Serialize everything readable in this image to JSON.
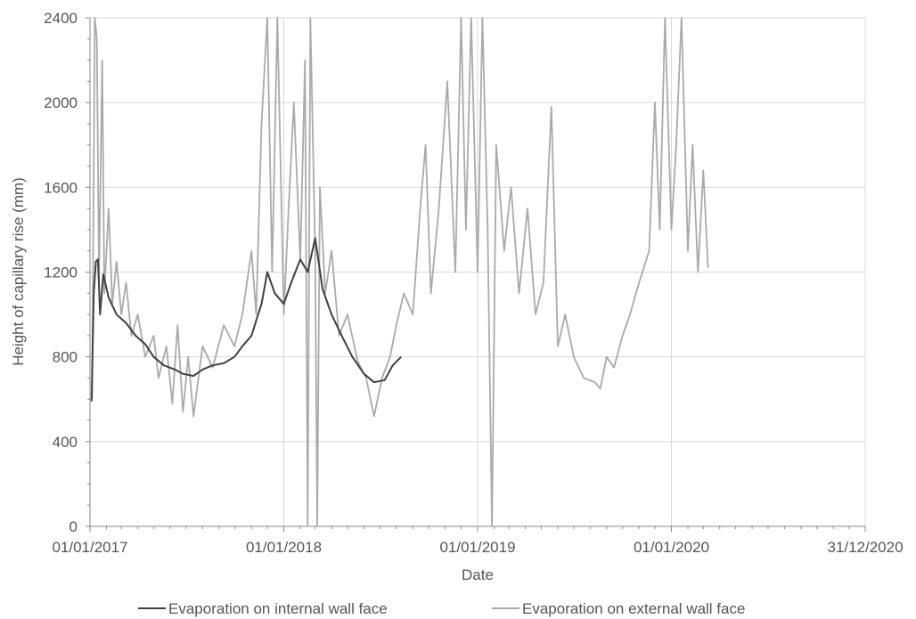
{
  "chart_data": {
    "type": "line",
    "title": "",
    "xlabel": "Date",
    "ylabel": "Height of capillary rise (mm)",
    "xlim": [
      "2017-01-01",
      "2020-12-31"
    ],
    "ylim": [
      0,
      2400
    ],
    "x_tick_labels": [
      "01/01/2017",
      "01/01/2018",
      "01/01/2019",
      "01/01/2020",
      "31/12/2020"
    ],
    "y_tick_labels": [
      "0",
      "400",
      "800",
      "1200",
      "1600",
      "2000",
      "2400"
    ],
    "y_ticks": [
      0,
      400,
      800,
      1200,
      1600,
      2000,
      2400
    ],
    "grid": true,
    "legend_position": "bottom",
    "series": [
      {
        "name": "Evaporation on internal wall face",
        "color": "#404040",
        "points": [
          [
            "2017-01-04",
            590
          ],
          [
            "2017-01-08",
            1100
          ],
          [
            "2017-01-12",
            1250
          ],
          [
            "2017-01-16",
            1260
          ],
          [
            "2017-01-20",
            1000
          ],
          [
            "2017-01-26",
            1190
          ],
          [
            "2017-02-05",
            1080
          ],
          [
            "2017-02-20",
            1000
          ],
          [
            "2017-03-10",
            960
          ],
          [
            "2017-03-28",
            900
          ],
          [
            "2017-04-15",
            860
          ],
          [
            "2017-05-01",
            800
          ],
          [
            "2017-05-20",
            760
          ],
          [
            "2017-06-10",
            740
          ],
          [
            "2017-06-25",
            720
          ],
          [
            "2017-07-15",
            710
          ],
          [
            "2017-08-01",
            740
          ],
          [
            "2017-08-20",
            760
          ],
          [
            "2017-09-10",
            770
          ],
          [
            "2017-09-30",
            800
          ],
          [
            "2017-10-15",
            850
          ],
          [
            "2017-11-01",
            900
          ],
          [
            "2017-11-20",
            1050
          ],
          [
            "2017-12-01",
            1200
          ],
          [
            "2017-12-15",
            1100
          ],
          [
            "2018-01-01",
            1050
          ],
          [
            "2018-01-15",
            1150
          ],
          [
            "2018-02-01",
            1260
          ],
          [
            "2018-02-15",
            1200
          ],
          [
            "2018-03-01",
            1360
          ],
          [
            "2018-03-15",
            1120
          ],
          [
            "2018-04-01",
            1000
          ],
          [
            "2018-04-20",
            900
          ],
          [
            "2018-05-10",
            800
          ],
          [
            "2018-06-01",
            720
          ],
          [
            "2018-06-20",
            680
          ],
          [
            "2018-07-10",
            690
          ],
          [
            "2018-07-25",
            760
          ],
          [
            "2018-08-10",
            800
          ]
        ]
      },
      {
        "name": "Evaporation on external wall face",
        "color": "#aaaaaa",
        "points": [
          [
            "2017-01-05",
            600
          ],
          [
            "2017-01-10",
            2400
          ],
          [
            "2017-01-14",
            2300
          ],
          [
            "2017-01-18",
            1150
          ],
          [
            "2017-01-24",
            2200
          ],
          [
            "2017-01-28",
            1100
          ],
          [
            "2017-02-05",
            1500
          ],
          [
            "2017-02-12",
            1050
          ],
          [
            "2017-02-20",
            1250
          ],
          [
            "2017-03-01",
            1000
          ],
          [
            "2017-03-10",
            1150
          ],
          [
            "2017-03-20",
            900
          ],
          [
            "2017-04-01",
            1000
          ],
          [
            "2017-04-15",
            800
          ],
          [
            "2017-05-01",
            900
          ],
          [
            "2017-05-10",
            700
          ],
          [
            "2017-05-25",
            850
          ],
          [
            "2017-06-05",
            580
          ],
          [
            "2017-06-15",
            950
          ],
          [
            "2017-06-25",
            540
          ],
          [
            "2017-07-05",
            800
          ],
          [
            "2017-07-15",
            520
          ],
          [
            "2017-08-01",
            850
          ],
          [
            "2017-08-20",
            750
          ],
          [
            "2017-09-10",
            950
          ],
          [
            "2017-09-30",
            850
          ],
          [
            "2017-10-15",
            1000
          ],
          [
            "2017-11-01",
            1300
          ],
          [
            "2017-11-10",
            1000
          ],
          [
            "2017-11-20",
            1900
          ],
          [
            "2017-12-01",
            2400
          ],
          [
            "2017-12-10",
            1200
          ],
          [
            "2017-12-20",
            2400
          ],
          [
            "2018-01-01",
            1000
          ],
          [
            "2018-01-10",
            1500
          ],
          [
            "2018-01-20",
            2000
          ],
          [
            "2018-02-01",
            1250
          ],
          [
            "2018-02-10",
            2200
          ],
          [
            "2018-02-15",
            0
          ],
          [
            "2018-02-20",
            2400
          ],
          [
            "2018-03-01",
            1300
          ],
          [
            "2018-03-05",
            0
          ],
          [
            "2018-03-10",
            1600
          ],
          [
            "2018-03-20",
            1100
          ],
          [
            "2018-04-01",
            1300
          ],
          [
            "2018-04-15",
            900
          ],
          [
            "2018-05-01",
            1000
          ],
          [
            "2018-05-20",
            780
          ],
          [
            "2018-06-05",
            700
          ],
          [
            "2018-06-20",
            520
          ],
          [
            "2018-07-05",
            700
          ],
          [
            "2018-07-20",
            800
          ],
          [
            "2018-08-01",
            950
          ],
          [
            "2018-08-15",
            1100
          ],
          [
            "2018-09-01",
            1000
          ],
          [
            "2018-09-15",
            1500
          ],
          [
            "2018-09-25",
            1800
          ],
          [
            "2018-10-05",
            1100
          ],
          [
            "2018-10-20",
            1500
          ],
          [
            "2018-11-05",
            2100
          ],
          [
            "2018-11-20",
            1200
          ],
          [
            "2018-12-01",
            2400
          ],
          [
            "2018-12-10",
            1400
          ],
          [
            "2018-12-20",
            2400
          ],
          [
            "2019-01-01",
            1200
          ],
          [
            "2019-01-10",
            2400
          ],
          [
            "2019-01-20",
            1400
          ],
          [
            "2019-01-28",
            0
          ],
          [
            "2019-02-05",
            1800
          ],
          [
            "2019-02-20",
            1300
          ],
          [
            "2019-03-05",
            1600
          ],
          [
            "2019-03-20",
            1100
          ],
          [
            "2019-04-05",
            1500
          ],
          [
            "2019-04-20",
            1000
          ],
          [
            "2019-05-05",
            1150
          ],
          [
            "2019-05-20",
            1980
          ],
          [
            "2019-06-01",
            850
          ],
          [
            "2019-06-15",
            1000
          ],
          [
            "2019-07-01",
            800
          ],
          [
            "2019-07-20",
            700
          ],
          [
            "2019-08-10",
            680
          ],
          [
            "2019-08-20",
            650
          ],
          [
            "2019-09-01",
            800
          ],
          [
            "2019-09-15",
            750
          ],
          [
            "2019-10-01",
            900
          ],
          [
            "2019-10-15",
            1000
          ],
          [
            "2019-11-01",
            1150
          ],
          [
            "2019-11-20",
            1300
          ],
          [
            "2019-12-01",
            2000
          ],
          [
            "2019-12-10",
            1400
          ],
          [
            "2019-12-20",
            2400
          ],
          [
            "2020-01-01",
            1400
          ],
          [
            "2020-01-10",
            1800
          ],
          [
            "2020-01-20",
            2400
          ],
          [
            "2020-02-01",
            1300
          ],
          [
            "2020-02-10",
            1800
          ],
          [
            "2020-02-20",
            1200
          ],
          [
            "2020-03-01",
            1680
          ],
          [
            "2020-03-10",
            1220
          ]
        ]
      }
    ]
  }
}
